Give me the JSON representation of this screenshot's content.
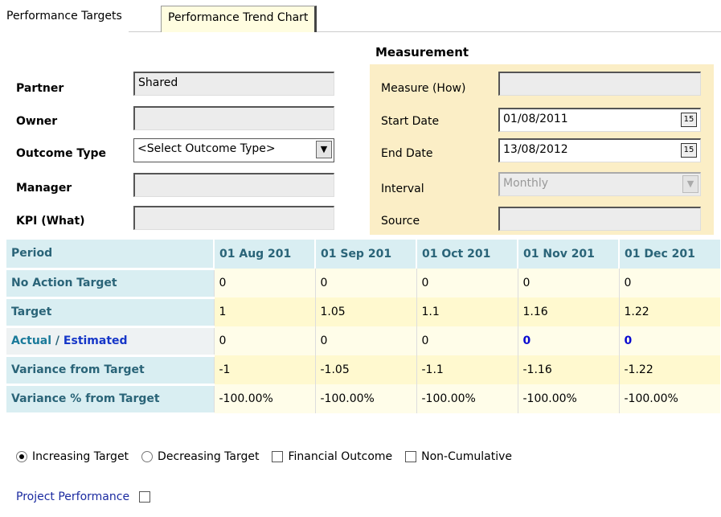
{
  "tabs": [
    "Performance Targets",
    "Performance Trend Chart"
  ],
  "left_form": {
    "partner_label": "Partner",
    "partner_value": "Shared",
    "owner_label": "Owner",
    "owner_value": "",
    "outcome_label": "Outcome Type",
    "outcome_value": "<Select Outcome Type>",
    "manager_label": "Manager",
    "manager_value": "",
    "kpi_label": "KPI (What)",
    "kpi_value": ""
  },
  "measurement": {
    "title": "Measurement",
    "measure_label": "Measure (How)",
    "measure_value": "",
    "start_label": "Start Date",
    "start_value": "01/08/2011",
    "end_label": "End Date",
    "end_value": "13/08/2012",
    "interval_label": "Interval",
    "interval_value": "Monthly",
    "source_label": "Source",
    "source_value": "",
    "calendar_glyph": "15"
  },
  "grid": {
    "period_label": "Period",
    "columns": [
      "01 Aug 201",
      "01 Sep 201",
      "01 Oct 201",
      "01 Nov 201",
      "01 Dec 201"
    ],
    "no_action_label": "No Action Target",
    "no_action": [
      "0",
      "0",
      "0",
      "0",
      "0"
    ],
    "target_label": "Target",
    "target": [
      "1",
      "1.05",
      "1.1",
      "1.16",
      "1.22"
    ],
    "actual_label": "Actual",
    "actual_sep": " / ",
    "estimated_label": "Estimated",
    "actual": [
      "0",
      "0",
      "0",
      "0",
      "0"
    ],
    "variance_label": "Variance from Target",
    "variance": [
      "-1",
      "-1.05",
      "-1.1",
      "-1.16",
      "-1.22"
    ],
    "variance_pct_label": "Variance % from Target",
    "variance_pct": [
      "-100.00%",
      "-100.00%",
      "-100.00%",
      "-100.00%",
      "-100.00%"
    ]
  },
  "options": {
    "increasing": "Increasing Target",
    "decreasing": "Decreasing Target",
    "financial": "Financial Outcome",
    "noncumulative": "Non-Cumulative",
    "project_performance": "Project Performance"
  },
  "colors": {
    "header_bg": "#d9eef2",
    "header_text": "#2a6478",
    "measurement_bg": "#fbeec6",
    "estimate_blue": "#0a0ad0"
  }
}
